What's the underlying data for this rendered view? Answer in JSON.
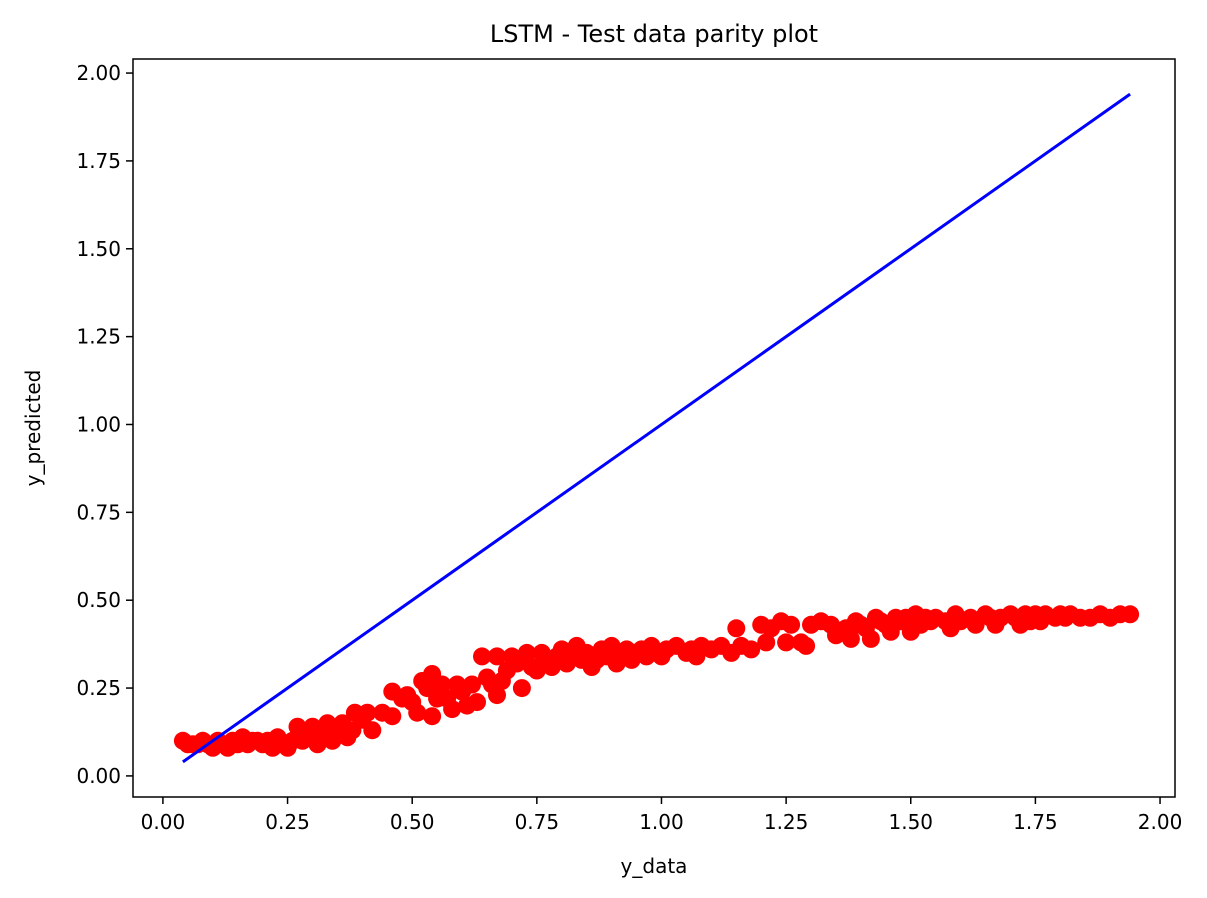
{
  "chart_data": {
    "type": "scatter",
    "title": "LSTM - Test data parity plot",
    "xlabel": "y_data",
    "ylabel": "y_predicted",
    "xlim": [
      -0.06,
      2.03
    ],
    "ylim": [
      -0.06,
      2.04
    ],
    "xticks": [
      "0.00",
      "0.25",
      "0.50",
      "0.75",
      "1.00",
      "1.25",
      "1.50",
      "1.75",
      "2.00"
    ],
    "yticks": [
      "0.00",
      "0.25",
      "0.50",
      "0.75",
      "1.00",
      "1.25",
      "1.50",
      "1.75",
      "2.00"
    ],
    "grid": false,
    "legend": "none",
    "series": [
      {
        "kind": "scatter",
        "color": "#ff0000",
        "points": [
          [
            0.04,
            0.1
          ],
          [
            0.05,
            0.09
          ],
          [
            0.06,
            0.09
          ],
          [
            0.07,
            0.09
          ],
          [
            0.08,
            0.1
          ],
          [
            0.09,
            0.09
          ],
          [
            0.1,
            0.08
          ],
          [
            0.11,
            0.1
          ],
          [
            0.12,
            0.09
          ],
          [
            0.13,
            0.08
          ],
          [
            0.14,
            0.1
          ],
          [
            0.15,
            0.09
          ],
          [
            0.16,
            0.11
          ],
          [
            0.17,
            0.09
          ],
          [
            0.18,
            0.1
          ],
          [
            0.19,
            0.1
          ],
          [
            0.2,
            0.09
          ],
          [
            0.21,
            0.1
          ],
          [
            0.22,
            0.08
          ],
          [
            0.23,
            0.11
          ],
          [
            0.24,
            0.09
          ],
          [
            0.25,
            0.08
          ],
          [
            0.26,
            0.1
          ],
          [
            0.27,
            0.14
          ],
          [
            0.28,
            0.1
          ],
          [
            0.29,
            0.12
          ],
          [
            0.3,
            0.14
          ],
          [
            0.31,
            0.09
          ],
          [
            0.32,
            0.13
          ],
          [
            0.33,
            0.15
          ],
          [
            0.34,
            0.1
          ],
          [
            0.35,
            0.13
          ],
          [
            0.36,
            0.15
          ],
          [
            0.37,
            0.11
          ],
          [
            0.38,
            0.13
          ],
          [
            0.385,
            0.18
          ],
          [
            0.4,
            0.16
          ],
          [
            0.41,
            0.18
          ],
          [
            0.42,
            0.13
          ],
          [
            0.44,
            0.18
          ],
          [
            0.46,
            0.17
          ],
          [
            0.46,
            0.24
          ],
          [
            0.48,
            0.22
          ],
          [
            0.49,
            0.23
          ],
          [
            0.5,
            0.21
          ],
          [
            0.51,
            0.18
          ],
          [
            0.52,
            0.27
          ],
          [
            0.53,
            0.25
          ],
          [
            0.54,
            0.29
          ],
          [
            0.54,
            0.17
          ],
          [
            0.55,
            0.22
          ],
          [
            0.56,
            0.26
          ],
          [
            0.57,
            0.22
          ],
          [
            0.58,
            0.19
          ],
          [
            0.59,
            0.26
          ],
          [
            0.6,
            0.24
          ],
          [
            0.61,
            0.2
          ],
          [
            0.62,
            0.26
          ],
          [
            0.63,
            0.21
          ],
          [
            0.64,
            0.34
          ],
          [
            0.65,
            0.28
          ],
          [
            0.66,
            0.26
          ],
          [
            0.67,
            0.34
          ],
          [
            0.67,
            0.23
          ],
          [
            0.68,
            0.27
          ],
          [
            0.69,
            0.3
          ],
          [
            0.7,
            0.34
          ],
          [
            0.71,
            0.32
          ],
          [
            0.72,
            0.25
          ],
          [
            0.73,
            0.35
          ],
          [
            0.74,
            0.31
          ],
          [
            0.75,
            0.3
          ],
          [
            0.76,
            0.35
          ],
          [
            0.77,
            0.33
          ],
          [
            0.78,
            0.31
          ],
          [
            0.79,
            0.34
          ],
          [
            0.8,
            0.36
          ],
          [
            0.81,
            0.32
          ],
          [
            0.82,
            0.34
          ],
          [
            0.83,
            0.37
          ],
          [
            0.84,
            0.33
          ],
          [
            0.85,
            0.35
          ],
          [
            0.86,
            0.31
          ],
          [
            0.87,
            0.33
          ],
          [
            0.88,
            0.36
          ],
          [
            0.89,
            0.34
          ],
          [
            0.9,
            0.37
          ],
          [
            0.91,
            0.32
          ],
          [
            0.92,
            0.35
          ],
          [
            0.93,
            0.36
          ],
          [
            0.94,
            0.33
          ],
          [
            0.95,
            0.35
          ],
          [
            0.96,
            0.36
          ],
          [
            0.97,
            0.34
          ],
          [
            0.98,
            0.37
          ],
          [
            0.99,
            0.35
          ],
          [
            1.0,
            0.34
          ],
          [
            1.01,
            0.36
          ],
          [
            1.03,
            0.37
          ],
          [
            1.05,
            0.35
          ],
          [
            1.06,
            0.36
          ],
          [
            1.07,
            0.34
          ],
          [
            1.08,
            0.37
          ],
          [
            1.1,
            0.36
          ],
          [
            1.12,
            0.37
          ],
          [
            1.14,
            0.35
          ],
          [
            1.15,
            0.42
          ],
          [
            1.16,
            0.37
          ],
          [
            1.18,
            0.36
          ],
          [
            1.2,
            0.43
          ],
          [
            1.21,
            0.38
          ],
          [
            1.22,
            0.42
          ],
          [
            1.24,
            0.44
          ],
          [
            1.25,
            0.38
          ],
          [
            1.26,
            0.43
          ],
          [
            1.28,
            0.38
          ],
          [
            1.29,
            0.37
          ],
          [
            1.3,
            0.43
          ],
          [
            1.32,
            0.44
          ],
          [
            1.34,
            0.43
          ],
          [
            1.35,
            0.4
          ],
          [
            1.37,
            0.42
          ],
          [
            1.38,
            0.39
          ],
          [
            1.39,
            0.44
          ],
          [
            1.4,
            0.43
          ],
          [
            1.41,
            0.42
          ],
          [
            1.42,
            0.39
          ],
          [
            1.43,
            0.45
          ],
          [
            1.44,
            0.44
          ],
          [
            1.45,
            0.43
          ],
          [
            1.46,
            0.41
          ],
          [
            1.47,
            0.45
          ],
          [
            1.48,
            0.44
          ],
          [
            1.49,
            0.45
          ],
          [
            1.5,
            0.41
          ],
          [
            1.51,
            0.46
          ],
          [
            1.52,
            0.43
          ],
          [
            1.53,
            0.45
          ],
          [
            1.54,
            0.44
          ],
          [
            1.55,
            0.45
          ],
          [
            1.57,
            0.44
          ],
          [
            1.58,
            0.42
          ],
          [
            1.59,
            0.46
          ],
          [
            1.6,
            0.44
          ],
          [
            1.62,
            0.45
          ],
          [
            1.63,
            0.43
          ],
          [
            1.65,
            0.46
          ],
          [
            1.66,
            0.45
          ],
          [
            1.67,
            0.43
          ],
          [
            1.68,
            0.45
          ],
          [
            1.7,
            0.46
          ],
          [
            1.71,
            0.45
          ],
          [
            1.72,
            0.43
          ],
          [
            1.73,
            0.46
          ],
          [
            1.74,
            0.44
          ],
          [
            1.75,
            0.46
          ],
          [
            1.76,
            0.44
          ],
          [
            1.77,
            0.46
          ],
          [
            1.79,
            0.45
          ],
          [
            1.8,
            0.46
          ],
          [
            1.81,
            0.45
          ],
          [
            1.82,
            0.46
          ],
          [
            1.84,
            0.45
          ],
          [
            1.86,
            0.45
          ],
          [
            1.88,
            0.46
          ],
          [
            1.9,
            0.45
          ],
          [
            1.92,
            0.46
          ],
          [
            1.94,
            0.46
          ]
        ]
      },
      {
        "kind": "line",
        "color": "#0000ff",
        "x": [
          0.04,
          1.94
        ],
        "y": [
          0.04,
          1.94
        ]
      }
    ]
  }
}
